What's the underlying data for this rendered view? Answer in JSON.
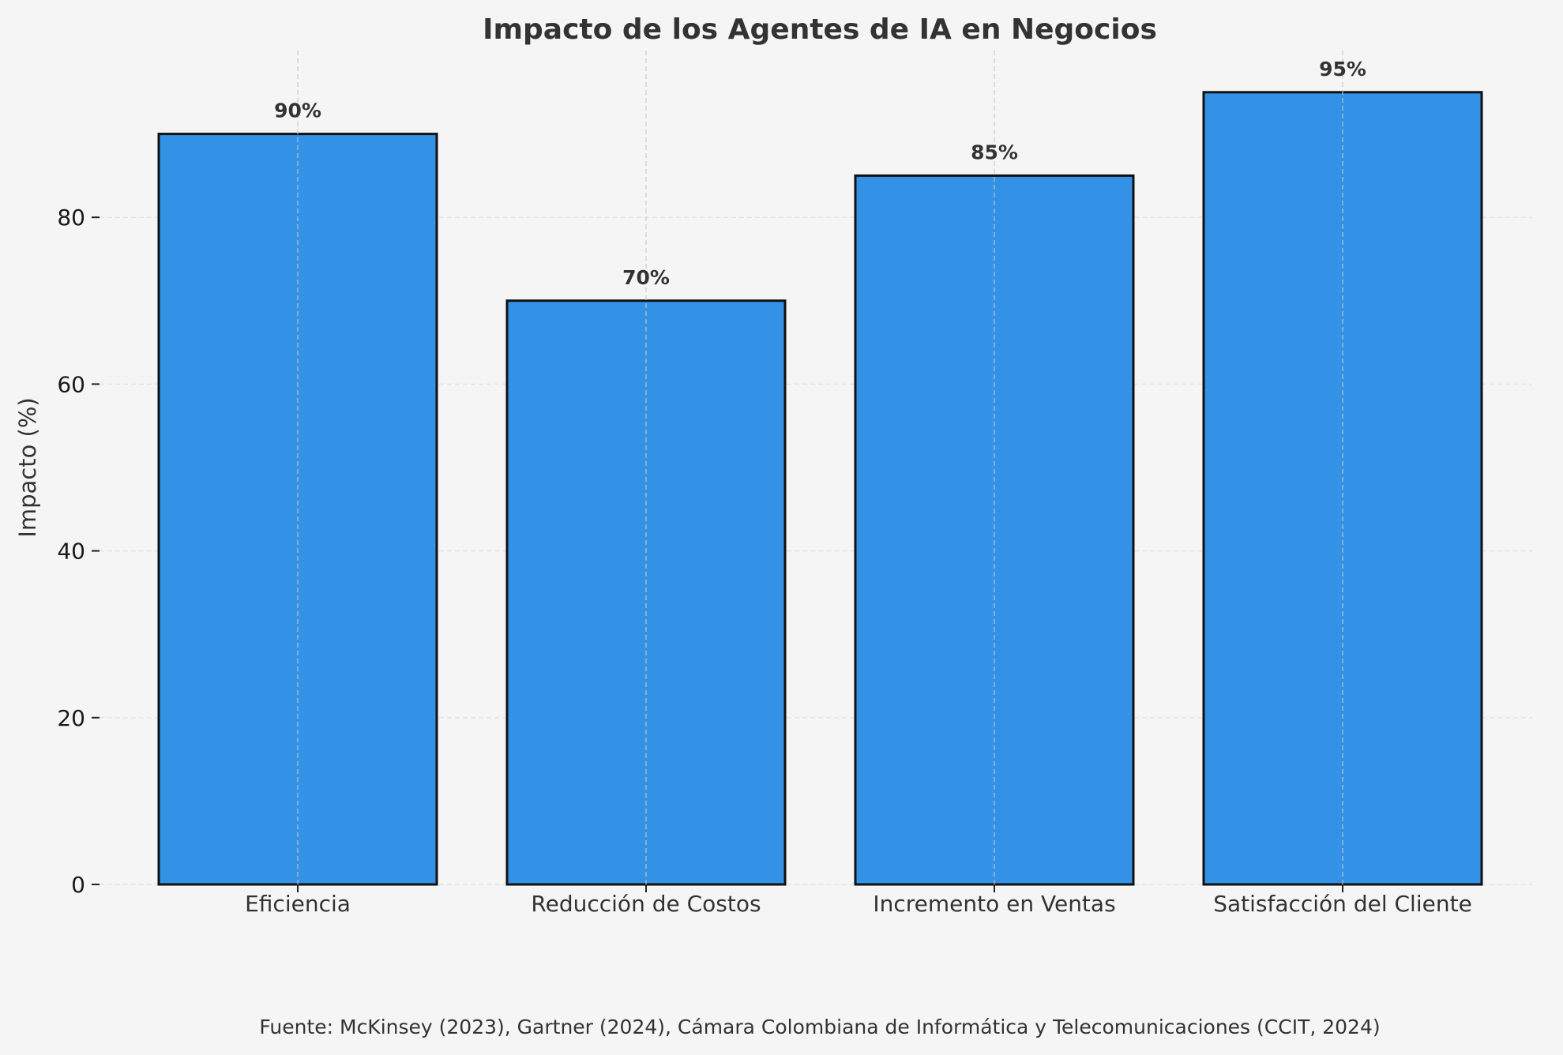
{
  "chart_data": {
    "type": "bar",
    "title": "Impacto de los Agentes de IA en Negocios",
    "xlabel": "",
    "ylabel": "Impacto (%)",
    "categories": [
      "Eficiencia",
      "Reducción de Costos",
      "Incremento en Ventas",
      "Satisfacción del Cliente"
    ],
    "values": [
      90,
      70,
      85,
      95
    ],
    "data_labels": [
      "90%",
      "70%",
      "85%",
      "95%"
    ],
    "ylim": [
      0,
      100
    ],
    "yticks": [
      0,
      20,
      40,
      60,
      80
    ],
    "ytick_labels": [
      "0",
      "20",
      "40",
      "60",
      "80"
    ],
    "grid": true,
    "bar_color": "#3492e6",
    "edge_color": "#111111",
    "footnote": "Fuente: McKinsey (2023), Gartner (2024), Cámara Colombiana de Informática y Telecomunicaciones (CCIT, 2024)"
  }
}
